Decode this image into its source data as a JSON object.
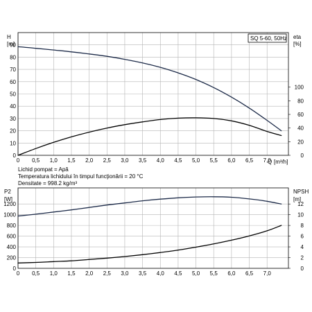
{
  "chart_data": [
    {
      "type": "line",
      "title": "SQ 5-60, 50Hz",
      "xlabel": "Q",
      "xunit": "[m³/h]",
      "ylabel_left": "H",
      "yunit_left": "[m]",
      "ylabel_right": "eta",
      "yunit_right": "[%]",
      "xlim": [
        0,
        7.6
      ],
      "ylim_left": [
        0,
        100
      ],
      "ylim_right": [
        0,
        180
      ],
      "x_ticks": [
        "0",
        "0,5",
        "1,0",
        "1,5",
        "2,0",
        "2,5",
        "3,0",
        "3,5",
        "4,0",
        "4,5",
        "5,0",
        "5,5",
        "6,0",
        "6,5",
        "7,0"
      ],
      "y_ticks_left": [
        "0",
        "10",
        "20",
        "30",
        "40",
        "50",
        "60",
        "70",
        "80",
        "90"
      ],
      "y_ticks_right": [
        "0",
        "20",
        "40",
        "60",
        "80",
        "100"
      ],
      "grid": true,
      "series": [
        {
          "axis": "left",
          "color": "#1c2a48",
          "x": [
            0,
            0.5,
            1.0,
            1.5,
            2.0,
            2.5,
            3.0,
            3.5,
            4.0,
            4.5,
            5.0,
            5.5,
            6.0,
            6.5,
            7.0,
            7.4
          ],
          "y": [
            88.5,
            87.2,
            85.8,
            84.3,
            82.6,
            80.7,
            78.2,
            75.3,
            71.7,
            67.2,
            61.8,
            55.2,
            47.4,
            38.5,
            28.5,
            20
          ]
        },
        {
          "axis": "right",
          "color": "#000000",
          "x": [
            0,
            0.5,
            1.0,
            1.5,
            2.0,
            2.5,
            3.0,
            3.5,
            4.0,
            4.5,
            5.0,
            5.5,
            6.0,
            6.5,
            7.0,
            7.4
          ],
          "y": [
            0,
            10,
            19,
            27,
            34,
            40,
            45,
            49,
            52.5,
            54.5,
            55,
            54,
            50.5,
            44,
            35,
            29
          ]
        }
      ],
      "notes": [
        "Lichid pompat = Apă",
        "Temperatura lichidului în timpul funcţionării = 20 °C",
        "Densitate = 998.2 kg/m³"
      ]
    },
    {
      "type": "line",
      "xlabel": "",
      "ylabel_left": "P2",
      "yunit_left": "[W]",
      "ylabel_right": "NPSH",
      "yunit_right": "[m]",
      "xlim": [
        0,
        7.6
      ],
      "ylim_left": [
        0,
        1500
      ],
      "ylim_right": [
        0,
        15
      ],
      "x_ticks": [
        "0",
        "0,5",
        "1,0",
        "1,5",
        "2,0",
        "2,5",
        "3,0",
        "3,5",
        "4,0",
        "4,5",
        "5,0",
        "5,5",
        "6,0",
        "6,5",
        "7,0"
      ],
      "y_ticks_left": [
        "0",
        "200",
        "400",
        "600",
        "800",
        "1000",
        "1200"
      ],
      "y_ticks_right": [
        "0",
        "2",
        "4",
        "6",
        "8",
        "10",
        "12"
      ],
      "grid": true,
      "series": [
        {
          "axis": "left",
          "color": "#1c2a48",
          "x": [
            0,
            0.5,
            1.0,
            1.5,
            2.0,
            2.5,
            3.0,
            3.5,
            4.0,
            4.5,
            5.0,
            5.5,
            6.0,
            6.5,
            7.0,
            7.4
          ],
          "y": [
            975,
            1010,
            1050,
            1090,
            1135,
            1180,
            1220,
            1260,
            1290,
            1315,
            1330,
            1335,
            1325,
            1295,
            1250,
            1200
          ]
        },
        {
          "axis": "right",
          "color": "#000000",
          "x": [
            0,
            0.5,
            1.0,
            1.5,
            2.0,
            2.5,
            3.0,
            3.5,
            4.0,
            4.5,
            5.0,
            5.5,
            6.0,
            6.5,
            7.0,
            7.4
          ],
          "y": [
            1.0,
            1.1,
            1.25,
            1.4,
            1.65,
            1.9,
            2.2,
            2.55,
            2.95,
            3.4,
            3.95,
            4.55,
            5.25,
            6.05,
            7.0,
            8.0
          ]
        }
      ]
    }
  ]
}
